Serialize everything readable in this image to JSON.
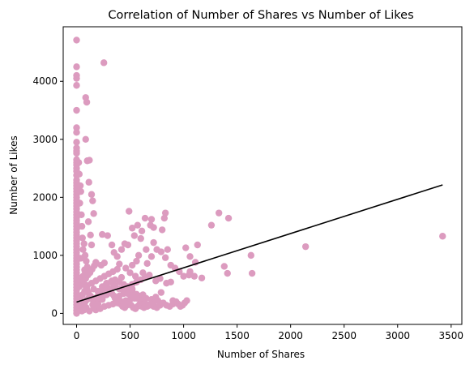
{
  "chart_data": {
    "type": "scatter",
    "title": "Correlation of Number of Shares vs Number of Likes",
    "xlabel": "Number of Shares",
    "ylabel": "Number of Likes",
    "xlim": [
      -125,
      3600
    ],
    "ylim": [
      -190,
      4940
    ],
    "xticks": [
      0,
      500,
      1000,
      1500,
      2000,
      2500,
      3000,
      3500
    ],
    "yticks": [
      0,
      1000,
      2000,
      3000,
      4000
    ],
    "grid": false,
    "point_color": "#dc9bbf",
    "line_color": "#000000",
    "series": [
      {
        "type": "scatter",
        "points": [
          [
            0,
            4710
          ],
          [
            0,
            4250
          ],
          [
            0,
            4100
          ],
          [
            0,
            4050
          ],
          [
            0,
            3930
          ],
          [
            0,
            3500
          ],
          [
            0,
            3200
          ],
          [
            0,
            3120
          ],
          [
            0,
            2950
          ],
          [
            0,
            2850
          ],
          [
            0,
            2800
          ],
          [
            0,
            2760
          ],
          [
            0,
            2650
          ],
          [
            0,
            2600
          ],
          [
            0,
            2560
          ],
          [
            0,
            2500
          ],
          [
            0,
            2450
          ],
          [
            0,
            2380
          ],
          [
            0,
            2300
          ],
          [
            0,
            2250
          ],
          [
            0,
            2200
          ],
          [
            0,
            2150
          ],
          [
            0,
            2100
          ],
          [
            0,
            2050
          ],
          [
            0,
            2000
          ],
          [
            0,
            1950
          ],
          [
            0,
            1900
          ],
          [
            0,
            1850
          ],
          [
            0,
            1800
          ],
          [
            0,
            1750
          ],
          [
            0,
            1700
          ],
          [
            0,
            1650
          ],
          [
            0,
            1600
          ],
          [
            0,
            1550
          ],
          [
            0,
            1500
          ],
          [
            0,
            1450
          ],
          [
            0,
            1400
          ],
          [
            0,
            1350
          ],
          [
            0,
            1300
          ],
          [
            0,
            1250
          ],
          [
            0,
            1200
          ],
          [
            0,
            1150
          ],
          [
            0,
            1100
          ],
          [
            0,
            1050
          ],
          [
            0,
            1000
          ],
          [
            0,
            950
          ],
          [
            0,
            900
          ],
          [
            0,
            850
          ],
          [
            0,
            800
          ],
          [
            0,
            750
          ],
          [
            0,
            700
          ],
          [
            0,
            650
          ],
          [
            0,
            600
          ],
          [
            0,
            550
          ],
          [
            0,
            500
          ],
          [
            0,
            450
          ],
          [
            0,
            400
          ],
          [
            0,
            350
          ],
          [
            0,
            300
          ],
          [
            0,
            250
          ],
          [
            0,
            200
          ],
          [
            0,
            150
          ],
          [
            0,
            100
          ],
          [
            0,
            50
          ],
          [
            0,
            0
          ],
          [
            255,
            4320
          ],
          [
            85,
            3720
          ],
          [
            95,
            3640
          ],
          [
            85,
            3000
          ],
          [
            120,
            2640
          ],
          [
            100,
            2630
          ],
          [
            115,
            2260
          ],
          [
            140,
            2050
          ],
          [
            150,
            1940
          ],
          [
            160,
            1720
          ],
          [
            110,
            1580
          ],
          [
            130,
            1350
          ],
          [
            140,
            1180
          ],
          [
            180,
            880
          ],
          [
            230,
            830
          ],
          [
            260,
            870
          ],
          [
            240,
            1360
          ],
          [
            290,
            1340
          ],
          [
            330,
            1180
          ],
          [
            350,
            1050
          ],
          [
            20,
            2600
          ],
          [
            25,
            2400
          ],
          [
            35,
            2200
          ],
          [
            40,
            2100
          ],
          [
            30,
            1900
          ],
          [
            45,
            1700
          ],
          [
            50,
            1500
          ],
          [
            55,
            1300
          ],
          [
            60,
            1100
          ],
          [
            40,
            950
          ],
          [
            70,
            1200
          ],
          [
            80,
            1000
          ],
          [
            90,
            900
          ],
          [
            75,
            750
          ],
          [
            490,
            1760
          ],
          [
            570,
            1520
          ],
          [
            520,
            1470
          ],
          [
            610,
            1420
          ],
          [
            540,
            1340
          ],
          [
            600,
            1290
          ],
          [
            640,
            1640
          ],
          [
            700,
            1620
          ],
          [
            690,
            1520
          ],
          [
            720,
            1480
          ],
          [
            800,
            1440
          ],
          [
            830,
            1730
          ],
          [
            820,
            1640
          ],
          [
            720,
            1220
          ],
          [
            650,
            1100
          ],
          [
            580,
            1000
          ],
          [
            560,
            900
          ],
          [
            520,
            830
          ],
          [
            480,
            1180
          ],
          [
            450,
            1200
          ],
          [
            420,
            1100
          ],
          [
            380,
            980
          ],
          [
            400,
            850
          ],
          [
            460,
            780
          ],
          [
            500,
            700
          ],
          [
            550,
            640
          ],
          [
            620,
            700
          ],
          [
            660,
            860
          ],
          [
            700,
            980
          ],
          [
            750,
            1100
          ],
          [
            790,
            1060
          ],
          [
            830,
            960
          ],
          [
            850,
            1100
          ],
          [
            880,
            830
          ],
          [
            920,
            780
          ],
          [
            960,
            720
          ],
          [
            1000,
            640
          ],
          [
            1020,
            1130
          ],
          [
            1060,
            980
          ],
          [
            1110,
            880
          ],
          [
            1130,
            1180
          ],
          [
            1060,
            720
          ],
          [
            1050,
            660
          ],
          [
            1100,
            640
          ],
          [
            1170,
            610
          ],
          [
            900,
            220
          ],
          [
            880,
            540
          ],
          [
            840,
            520
          ],
          [
            780,
            600
          ],
          [
            740,
            560
          ],
          [
            1260,
            1520
          ],
          [
            1330,
            1730
          ],
          [
            1420,
            1640
          ],
          [
            1380,
            810
          ],
          [
            1410,
            690
          ],
          [
            1630,
            1000
          ],
          [
            1640,
            690
          ],
          [
            2140,
            1150
          ],
          [
            3420,
            1330
          ],
          [
            150,
            150
          ],
          [
            200,
            220
          ],
          [
            250,
            300
          ],
          [
            300,
            400
          ],
          [
            350,
            480
          ],
          [
            280,
            520
          ],
          [
            330,
            560
          ],
          [
            420,
            620
          ],
          [
            460,
            420
          ],
          [
            520,
            380
          ],
          [
            560,
            330
          ],
          [
            600,
            300
          ],
          [
            650,
            260
          ],
          [
            700,
            240
          ],
          [
            740,
            280
          ],
          [
            790,
            360
          ],
          [
            180,
            60
          ],
          [
            220,
            80
          ],
          [
            260,
            120
          ],
          [
            300,
            140
          ],
          [
            340,
            160
          ],
          [
            380,
            180
          ],
          [
            420,
            200
          ],
          [
            460,
            220
          ],
          [
            500,
            240
          ],
          [
            540,
            260
          ],
          [
            580,
            280
          ],
          [
            620,
            320
          ],
          [
            120,
            40
          ],
          [
            160,
            100
          ],
          [
            200,
            160
          ],
          [
            240,
            240
          ],
          [
            280,
            320
          ],
          [
            320,
            360
          ],
          [
            360,
            260
          ],
          [
            400,
            300
          ],
          [
            440,
            340
          ],
          [
            480,
            380
          ],
          [
            520,
            420
          ],
          [
            100,
            480
          ],
          [
            140,
            520
          ],
          [
            180,
            560
          ],
          [
            220,
            600
          ],
          [
            260,
            640
          ],
          [
            300,
            680
          ],
          [
            340,
            720
          ],
          [
            380,
            760
          ],
          [
            160,
            420
          ],
          [
            200,
            380
          ],
          [
            240,
            460
          ],
          [
            280,
            500
          ],
          [
            320,
            540
          ],
          [
            360,
            580
          ],
          [
            400,
            540
          ],
          [
            440,
            500
          ],
          [
            480,
            460
          ],
          [
            520,
            500
          ],
          [
            560,
            540
          ],
          [
            600,
            580
          ],
          [
            640,
            620
          ],
          [
            680,
            660
          ],
          [
            120,
            300
          ],
          [
            160,
            260
          ],
          [
            200,
            300
          ],
          [
            240,
            340
          ],
          [
            280,
            380
          ],
          [
            320,
            420
          ],
          [
            360,
            460
          ],
          [
            400,
            420
          ],
          [
            440,
            380
          ],
          [
            480,
            340
          ],
          [
            520,
            300
          ],
          [
            560,
            260
          ],
          [
            600,
            220
          ],
          [
            640,
            180
          ],
          [
            680,
            140
          ],
          [
            720,
            180
          ],
          [
            760,
            220
          ],
          [
            60,
            640
          ],
          [
            80,
            720
          ],
          [
            100,
            800
          ],
          [
            50,
            580
          ],
          [
            70,
            500
          ],
          [
            90,
            440
          ],
          [
            110,
            360
          ],
          [
            130,
            300
          ],
          [
            150,
            240
          ],
          [
            170,
            200
          ],
          [
            190,
            260
          ],
          [
            210,
            320
          ],
          [
            230,
            380
          ],
          [
            250,
            440
          ],
          [
            270,
            480
          ],
          [
            290,
            440
          ],
          [
            310,
            400
          ],
          [
            330,
            340
          ],
          [
            350,
            300
          ],
          [
            370,
            240
          ],
          [
            390,
            200
          ],
          [
            410,
            160
          ],
          [
            430,
            120
          ],
          [
            450,
            100
          ],
          [
            470,
            140
          ],
          [
            490,
            180
          ],
          [
            510,
            140
          ],
          [
            530,
            100
          ],
          [
            550,
            80
          ],
          [
            570,
            120
          ],
          [
            590,
            160
          ],
          [
            610,
            120
          ],
          [
            630,
            100
          ],
          [
            660,
            120
          ],
          [
            690,
            160
          ],
          [
            720,
            120
          ],
          [
            750,
            100
          ],
          [
            780,
            140
          ],
          [
            810,
            180
          ],
          [
            840,
            140
          ],
          [
            870,
            120
          ],
          [
            900,
            160
          ],
          [
            930,
            200
          ],
          [
            950,
            160
          ],
          [
            970,
            120
          ],
          [
            990,
            140
          ],
          [
            1010,
            180
          ],
          [
            1030,
            220
          ],
          [
            40,
            120
          ],
          [
            60,
            160
          ],
          [
            80,
            200
          ],
          [
            100,
            240
          ],
          [
            30,
            80
          ],
          [
            50,
            40
          ],
          [
            70,
            60
          ],
          [
            90,
            100
          ],
          [
            20,
            140
          ],
          [
            35,
            260
          ],
          [
            55,
            320
          ],
          [
            75,
            380
          ],
          [
            95,
            420
          ],
          [
            15,
            300
          ],
          [
            25,
            460
          ],
          [
            45,
            520
          ],
          [
            65,
            560
          ],
          [
            85,
            600
          ],
          [
            105,
            660
          ],
          [
            125,
            700
          ],
          [
            145,
            760
          ],
          [
            165,
            820
          ],
          [
            185,
            860
          ]
        ]
      },
      {
        "type": "line",
        "points": [
          [
            0,
            195
          ],
          [
            3420,
            2215
          ]
        ]
      }
    ]
  }
}
